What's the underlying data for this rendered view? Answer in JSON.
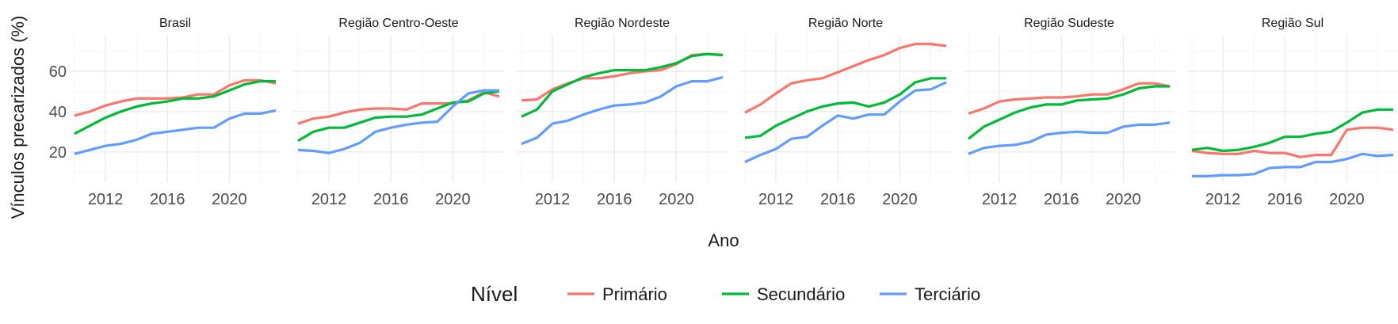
{
  "chart_data": {
    "type": "line",
    "xlabel": "Ano",
    "ylabel": "Vínculos precarizados (%)",
    "xlim": [
      2010,
      2023
    ],
    "ylim": [
      5,
      78
    ],
    "x_ticks": [
      2012,
      2016,
      2020
    ],
    "y_ticks": [
      20,
      40,
      60
    ],
    "x": [
      2010,
      2011,
      2012,
      2013,
      2014,
      2015,
      2016,
      2017,
      2018,
      2019,
      2020,
      2021,
      2022,
      2023
    ],
    "legend": {
      "title": "Nível",
      "position": "bottom",
      "entries": [
        {
          "name": "Primário",
          "color": "#F8766D"
        },
        {
          "name": "Secundário",
          "color": "#00BA38"
        },
        {
          "name": "Terciário",
          "color": "#619CFF"
        }
      ]
    },
    "grid": true,
    "panels": [
      {
        "title": "Brasil",
        "series": [
          {
            "name": "Primário",
            "values": [
              38,
              40,
              43,
              45,
              46.5,
              46.5,
              46.5,
              47,
              48.5,
              48.5,
              53,
              55.5,
              55.5,
              54
            ]
          },
          {
            "name": "Secundário",
            "values": [
              29,
              33,
              37,
              40,
              42.5,
              44,
              45,
              46.5,
              46.5,
              47.5,
              50.5,
              53.5,
              55,
              55
            ]
          },
          {
            "name": "Terciário",
            "values": [
              19,
              21,
              23,
              24,
              26,
              29,
              30,
              31,
              32,
              32,
              36.5,
              39,
              39,
              40.5
            ]
          }
        ]
      },
      {
        "title": "Região Centro-Oeste",
        "series": [
          {
            "name": "Primário",
            "values": [
              34,
              36.5,
              37.5,
              39.5,
              41,
              41.5,
              41.5,
              41,
              44,
              44,
              44,
              45.5,
              49.5,
              47.5
            ]
          },
          {
            "name": "Secundário",
            "values": [
              25.5,
              30,
              32,
              32,
              34.5,
              37,
              37.5,
              37.5,
              38.5,
              41.5,
              44.5,
              45,
              49,
              50
            ]
          },
          {
            "name": "Terciário",
            "values": [
              21,
              20.5,
              19.5,
              21.5,
              24.5,
              30,
              32,
              33.5,
              34.5,
              35,
              42.5,
              49,
              50.5,
              50.5
            ]
          }
        ]
      },
      {
        "title": "Região Nordeste",
        "series": [
          {
            "name": "Primário",
            "values": [
              45.5,
              46,
              51,
              54,
              56.5,
              56.5,
              57.5,
              59,
              60,
              60.5,
              63.5,
              68,
              68.5,
              68
            ]
          },
          {
            "name": "Secundário",
            "values": [
              37.5,
              41,
              50,
              53.5,
              57,
              59,
              60.5,
              60.5,
              60.5,
              62,
              64,
              67.5,
              68.5,
              68
            ]
          },
          {
            "name": "Terciário",
            "values": [
              24,
              27,
              34,
              35.5,
              38.5,
              41,
              43,
              43.5,
              44.5,
              47.5,
              52.5,
              55,
              55,
              57
            ]
          }
        ]
      },
      {
        "title": "Região Norte",
        "series": [
          {
            "name": "Primário",
            "values": [
              39.5,
              43.5,
              49,
              54,
              55.5,
              56.5,
              59.5,
              62.5,
              65.5,
              68,
              71.5,
              73.5,
              73.5,
              72.5
            ]
          },
          {
            "name": "Secundário",
            "values": [
              27,
              28,
              33,
              36.5,
              40,
              42.5,
              44,
              44.5,
              42.5,
              44.5,
              48.5,
              54.5,
              56.5,
              56.5
            ]
          },
          {
            "name": "Terciário",
            "values": [
              15,
              18.5,
              21.5,
              26.5,
              27.5,
              33,
              38,
              36.5,
              38.5,
              38.5,
              45,
              50.5,
              51,
              54.5
            ]
          }
        ]
      },
      {
        "title": "Região Sudeste",
        "series": [
          {
            "name": "Primário",
            "values": [
              39,
              41.5,
              45,
              46,
              46.5,
              47,
              47,
              47.5,
              48.5,
              48.5,
              51,
              54,
              54,
              52.5
            ]
          },
          {
            "name": "Secundário",
            "values": [
              26.5,
              32.5,
              36,
              39.5,
              42,
              43.5,
              43.5,
              45.5,
              46,
              46.5,
              48.5,
              51.5,
              52.5,
              52.5
            ]
          },
          {
            "name": "Terciário",
            "values": [
              19,
              22,
              23,
              23.5,
              25,
              28.5,
              29.5,
              30,
              29.5,
              29.5,
              32.5,
              33.5,
              33.5,
              34.5
            ]
          }
        ]
      },
      {
        "title": "Região Sul",
        "series": [
          {
            "name": "Primário",
            "values": [
              20.5,
              19.5,
              19,
              19,
              20.5,
              19.5,
              19.5,
              17.5,
              18.5,
              18.5,
              31,
              32,
              32,
              31
            ]
          },
          {
            "name": "Secundário",
            "values": [
              21,
              22,
              20.5,
              21,
              22.5,
              24.5,
              27.5,
              27.5,
              29,
              30,
              34.5,
              39.5,
              41,
              41
            ]
          },
          {
            "name": "Terciário",
            "values": [
              8,
              8,
              8.5,
              8.5,
              9,
              12,
              12.5,
              12.5,
              15,
              15,
              16.5,
              19,
              18,
              18.5
            ]
          }
        ]
      }
    ]
  }
}
